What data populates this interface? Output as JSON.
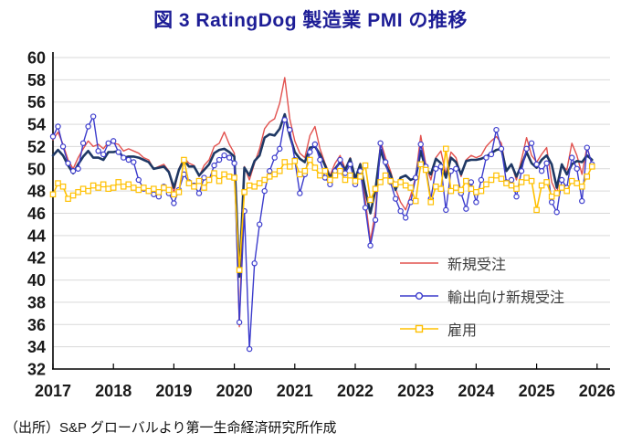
{
  "title": "図 3  RatingDog 製造業 PMI の推移",
  "source_note": "（出所）S&P グローバルより第一生命経済研究所作成",
  "colors": {
    "title": "#1d1d96",
    "new_orders": "#e2524f",
    "export_orders": "#3c3ccc",
    "employment": "#ffc000",
    "headline_navy": "#1f3864",
    "gridline": "#d9d9d9",
    "axis": "#000000",
    "tick_label": "#1a1a1a",
    "legend_text": "#3d3d3d"
  },
  "chart_data": {
    "type": "line",
    "title": "図 3  RatingDog 製造業 PMI の推移",
    "x_unit": "month",
    "x_start": "2017-01",
    "x_end": "2025-12",
    "x_tick_labels": [
      "2017",
      "2018",
      "2019",
      "2020",
      "2021",
      "2022",
      "2023",
      "2024",
      "2025",
      "2026"
    ],
    "ylim": [
      32,
      60
    ],
    "y_tick_step": 2,
    "grid": "horizontal",
    "legend_position": "inside-right",
    "series": [
      {
        "name": "新規受注",
        "color": "#e2524f",
        "marker": "none",
        "line_width": 1.4,
        "in_legend": true,
        "values": [
          52.6,
          53.3,
          52.2,
          50.8,
          50.0,
          51.0,
          51.8,
          52.5,
          52.0,
          52.2,
          51.8,
          52.4,
          52.3,
          52.2,
          51.6,
          51.8,
          51.6,
          51.4,
          51.0,
          50.8,
          50.0,
          50.2,
          50.4,
          49.8,
          47.8,
          50.0,
          51.0,
          50.5,
          50.3,
          49.3,
          50.3,
          50.8,
          52.0,
          52.3,
          53.3,
          52.2,
          51.4,
          35.8,
          50.2,
          49.0,
          50.5,
          51.8,
          53.6,
          54.2,
          54.5,
          55.9,
          58.2,
          54.5,
          52.5,
          51.4,
          51.0,
          53.0,
          53.8,
          51.8,
          50.5,
          49.4,
          50.5,
          51.2,
          50.0,
          51.0,
          49.0,
          50.5,
          47.2,
          43.5,
          46.2,
          52.5,
          51.0,
          49.8,
          48.2,
          47.0,
          46.3,
          47.6,
          49.3,
          53.0,
          50.4,
          49.0,
          51.0,
          51.6,
          49.5,
          51.5,
          51.0,
          49.3,
          50.8,
          51.2,
          51.0,
          51.2,
          52.0,
          52.5,
          52.9,
          52.3,
          49.8,
          50.4,
          49.0,
          50.8,
          52.8,
          51.2,
          50.6,
          51.3,
          51.9,
          48.8,
          47.8,
          50.3,
          49.9,
          52.3,
          51.2,
          49.5,
          52.0,
          50.3
        ]
      },
      {
        "name": "輸出向け新規受注",
        "color": "#3c3ccc",
        "marker": "circle",
        "line_width": 1.4,
        "in_legend": true,
        "values": [
          52.9,
          53.8,
          52.0,
          50.5,
          49.8,
          50.0,
          52.3,
          53.8,
          54.7,
          51.6,
          51.3,
          52.3,
          52.5,
          51.5,
          51.0,
          50.8,
          50.6,
          49.0,
          48.2,
          48.0,
          47.7,
          47.5,
          48.4,
          47.8,
          46.9,
          48.1,
          49.5,
          48.8,
          48.5,
          47.8,
          49.2,
          49.0,
          50.3,
          50.8,
          51.2,
          51.0,
          50.5,
          36.2,
          46.2,
          33.8,
          41.5,
          45.0,
          48.0,
          49.8,
          51.0,
          51.8,
          54.4,
          53.5,
          50.8,
          47.8,
          49.5,
          51.5,
          52.2,
          50.8,
          49.2,
          48.6,
          49.8,
          50.8,
          49.6,
          50.4,
          48.6,
          49.8,
          46.5,
          43.1,
          45.4,
          52.3,
          50.6,
          48.8,
          47.3,
          46.2,
          45.6,
          47.0,
          49.2,
          52.2,
          50.2,
          47.3,
          50.0,
          50.2,
          46.3,
          49.8,
          50.0,
          47.8,
          46.4,
          48.8,
          47.0,
          49.0,
          51.0,
          51.3,
          53.5,
          51.8,
          48.8,
          49.0,
          47.5,
          49.8,
          51.8,
          52.3,
          50.4,
          49.8,
          50.5,
          47.0,
          46.1,
          49.0,
          48.3,
          51.0,
          50.0,
          47.1,
          51.9,
          50.4
        ]
      },
      {
        "name": "雇用",
        "color": "#ffc000",
        "marker": "square",
        "line_width": 1.6,
        "in_legend": true,
        "values": [
          47.7,
          48.7,
          48.4,
          47.3,
          47.6,
          47.9,
          48.2,
          48.0,
          48.5,
          48.3,
          48.6,
          48.2,
          48.3,
          48.8,
          48.4,
          48.6,
          48.3,
          48.1,
          48.3,
          48.0,
          48.2,
          47.9,
          48.3,
          48.1,
          47.7,
          47.9,
          50.8,
          48.7,
          48.4,
          48.9,
          48.3,
          49.0,
          49.6,
          48.9,
          49.5,
          49.3,
          49.2,
          40.9,
          47.9,
          48.5,
          48.4,
          48.7,
          49.0,
          49.3,
          49.5,
          49.8,
          50.6,
          50.2,
          50.7,
          49.5,
          49.8,
          50.8,
          50.1,
          49.4,
          49.8,
          49.0,
          49.4,
          49.8,
          49.0,
          49.4,
          48.9,
          49.3,
          50.3,
          47.2,
          48.2,
          48.8,
          49.4,
          48.9,
          48.6,
          48.8,
          48.5,
          48.3,
          47.1,
          50.4,
          49.9,
          47.0,
          48.4,
          48.2,
          51.8,
          48.0,
          48.3,
          48.1,
          48.9,
          48.2,
          47.9,
          48.0,
          48.6,
          49.0,
          49.4,
          49.1,
          48.7,
          48.5,
          48.2,
          48.8,
          49.2,
          48.9,
          46.3,
          48.5,
          48.8,
          47.5,
          47.8,
          48.3,
          48.0,
          48.9,
          48.7,
          48.4,
          49.3,
          50.2
        ]
      },
      {
        "name": "製造業PMI（凡例表記なし・濃紺太線）",
        "color": "#1f3864",
        "marker": "none",
        "line_width": 2.6,
        "in_legend": false,
        "values": [
          51.2,
          51.7,
          51.2,
          50.3,
          49.6,
          50.4,
          51.1,
          51.6,
          51.0,
          51.0,
          50.8,
          51.5,
          51.5,
          51.6,
          51.0,
          51.1,
          51.1,
          51.0,
          50.8,
          50.6,
          50.0,
          50.1,
          50.2,
          49.7,
          48.3,
          49.9,
          50.8,
          50.2,
          50.2,
          49.4,
          49.9,
          50.4,
          51.4,
          51.7,
          51.8,
          51.5,
          51.1,
          40.3,
          50.1,
          49.4,
          50.7,
          51.2,
          52.8,
          53.1,
          53.0,
          53.6,
          54.9,
          53.0,
          51.5,
          50.9,
          50.6,
          51.9,
          52.0,
          51.3,
          50.3,
          49.2,
          50.0,
          50.6,
          49.9,
          50.9,
          49.1,
          50.4,
          48.1,
          46.0,
          48.1,
          51.7,
          50.4,
          49.5,
          48.1,
          49.2,
          49.4,
          49.0,
          49.2,
          51.6,
          50.0,
          49.5,
          50.9,
          50.5,
          49.2,
          51.0,
          50.6,
          49.5,
          50.7,
          50.8,
          50.8,
          50.9,
          51.1,
          51.4,
          51.7,
          51.8,
          49.8,
          50.4,
          49.3,
          50.3,
          51.5,
          50.5,
          50.1,
          50.8,
          51.2,
          50.4,
          48.3,
          50.4,
          49.5,
          50.4,
          50.7,
          50.6,
          51.2,
          50.8
        ]
      }
    ]
  },
  "legend": {
    "items": [
      {
        "label": "新規受注"
      },
      {
        "label": "輸出向け新規受注"
      },
      {
        "label": "雇用"
      }
    ]
  }
}
